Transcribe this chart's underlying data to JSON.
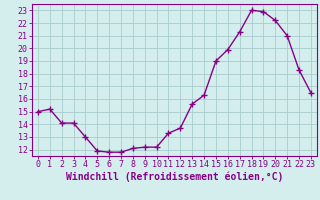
{
  "x": [
    0,
    1,
    2,
    3,
    4,
    5,
    6,
    7,
    8,
    9,
    10,
    11,
    12,
    13,
    14,
    15,
    16,
    17,
    18,
    19,
    20,
    21,
    22,
    23
  ],
  "y": [
    15.0,
    15.2,
    14.1,
    14.1,
    13.0,
    11.9,
    11.8,
    11.8,
    12.1,
    12.2,
    12.2,
    13.3,
    13.7,
    15.6,
    16.3,
    19.0,
    19.9,
    21.3,
    23.0,
    22.9,
    22.2,
    21.0,
    18.3,
    16.5
  ],
  "line_color": "#880088",
  "marker": "+",
  "markersize": 4,
  "linewidth": 1.0,
  "xlabel": "Windchill (Refroidissement éolien,°C)",
  "xlabel_fontsize": 7,
  "bg_color": "#d4eeee",
  "grid_color": "#aacccc",
  "yticks": [
    12,
    13,
    14,
    15,
    16,
    17,
    18,
    19,
    20,
    21,
    22,
    23
  ],
  "xticks": [
    0,
    1,
    2,
    3,
    4,
    5,
    6,
    7,
    8,
    9,
    10,
    11,
    12,
    13,
    14,
    15,
    16,
    17,
    18,
    19,
    20,
    21,
    22,
    23
  ],
  "ylim": [
    11.5,
    23.5
  ],
  "xlim": [
    -0.5,
    23.5
  ],
  "tick_fontsize": 6,
  "tick_color": "#880088",
  "spine_color": "#880088"
}
